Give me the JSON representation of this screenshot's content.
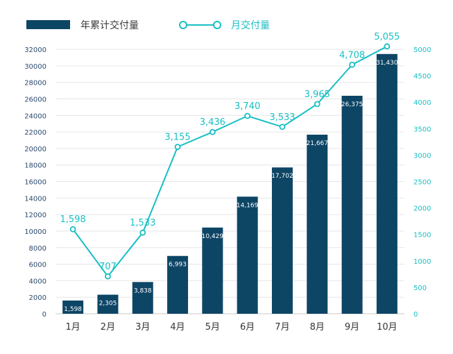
{
  "chart_data": {
    "type": "bar",
    "categories": [
      "1月",
      "2月",
      "3月",
      "4月",
      "5月",
      "6月",
      "7月",
      "8月",
      "9月",
      "10月"
    ],
    "series": [
      {
        "name": "年累计交付量",
        "type": "bar",
        "axis": "left",
        "color": "#0d4565",
        "values": [
          1598,
          2305,
          3838,
          6993,
          10429,
          14169,
          17702,
          21667,
          26375,
          31430
        ],
        "labels": [
          "1,598",
          "2,305",
          "3,838",
          "6,993",
          "10,429",
          "14,169",
          "17,702",
          "21,667",
          "26,375",
          "31,430"
        ]
      },
      {
        "name": "月交付量",
        "type": "line",
        "axis": "right",
        "color": "#17bfc4",
        "values": [
          1598,
          707,
          1533,
          3155,
          3436,
          3740,
          3533,
          3965,
          4708,
          5055
        ],
        "labels": [
          "1,598",
          "707",
          "1,533",
          "3,155",
          "3,436",
          "3,740",
          "3,533",
          "3,965",
          "4,708",
          "5,055"
        ]
      }
    ],
    "y_left": {
      "min": 0,
      "max": 32000,
      "ticks": [
        "0",
        "2000",
        "4000",
        "6000",
        "8000",
        "10000",
        "12000",
        "14000",
        "16000",
        "18000",
        "20000",
        "22000",
        "24000",
        "26000",
        "28000",
        "30000",
        "32000"
      ],
      "tick_values": [
        0,
        2000,
        4000,
        6000,
        8000,
        10000,
        12000,
        14000,
        16000,
        18000,
        20000,
        22000,
        24000,
        26000,
        28000,
        30000,
        32000
      ]
    },
    "y_right": {
      "min": 0,
      "max": 5000,
      "ticks": [
        "0",
        "500",
        "1000",
        "1500",
        "2000",
        "2500",
        "3000",
        "3500",
        "4000",
        "4500",
        "5000"
      ],
      "tick_values": [
        0,
        500,
        1000,
        1500,
        2000,
        2500,
        3000,
        3500,
        4000,
        4500,
        5000
      ]
    },
    "grid": true,
    "legend_position": "top-left"
  }
}
